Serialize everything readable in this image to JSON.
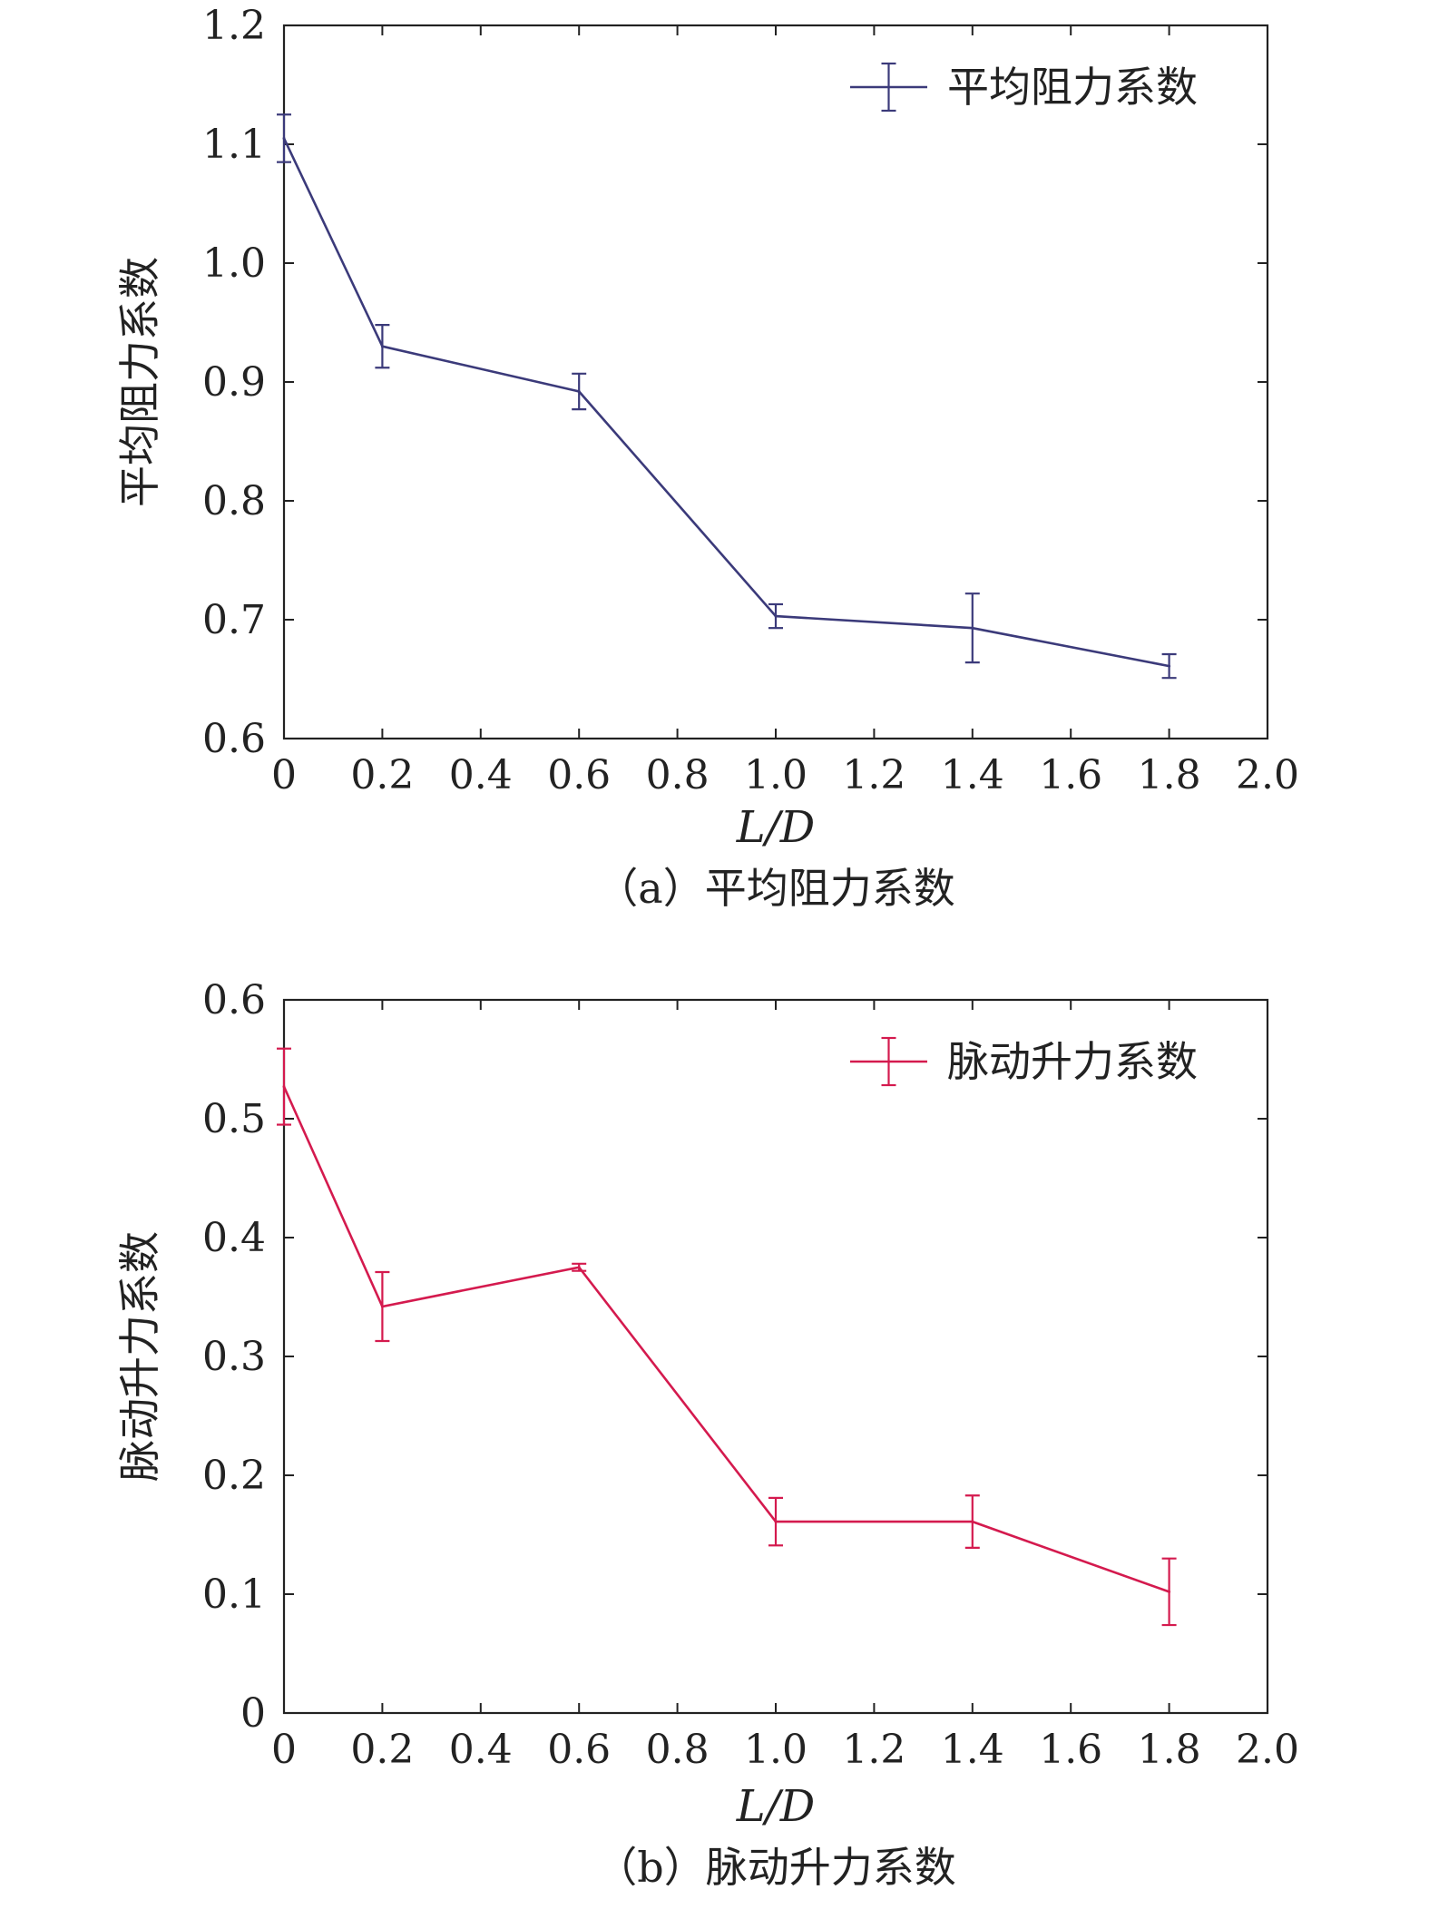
{
  "chart_data": [
    {
      "type": "line",
      "xlabel": "L/D",
      "ylabel": "平均阻力系数",
      "caption": "（a）平均阻力系数",
      "xlim": [
        0,
        2.0
      ],
      "ylim": [
        0.6,
        1.2
      ],
      "x_ticks": [
        "0",
        "0.2",
        "0.4",
        "0.6",
        "0.8",
        "1.0",
        "1.2",
        "1.4",
        "1.6",
        "1.8",
        "2.0"
      ],
      "y_ticks": [
        "0.6",
        "0.7",
        "0.8",
        "0.9",
        "1.0",
        "1.1",
        "1.2"
      ],
      "legend_position": "top-right",
      "series": [
        {
          "name": "平均阻力系数",
          "color": "#3b3a7a",
          "x": [
            0,
            0.2,
            0.6,
            1.0,
            1.4,
            1.8
          ],
          "y": [
            1.105,
            0.93,
            0.892,
            0.703,
            0.693,
            0.661
          ],
          "error": [
            0.02,
            0.018,
            0.015,
            0.01,
            0.029,
            0.01
          ]
        }
      ]
    },
    {
      "type": "line",
      "xlabel": "L/D",
      "ylabel": "脉动升力系数",
      "caption": "（b）脉动升力系数",
      "xlim": [
        0,
        2.0
      ],
      "ylim": [
        0,
        0.6
      ],
      "x_ticks": [
        "0",
        "0.2",
        "0.4",
        "0.6",
        "0.8",
        "1.0",
        "1.2",
        "1.4",
        "1.6",
        "1.8",
        "2.0"
      ],
      "y_ticks": [
        "0",
        "0.1",
        "0.2",
        "0.3",
        "0.4",
        "0.5",
        "0.6"
      ],
      "legend_position": "top-right",
      "series": [
        {
          "name": "脉动升力系数",
          "color": "#d41a4e",
          "x": [
            0,
            0.2,
            0.6,
            1.0,
            1.4,
            1.8
          ],
          "y": [
            0.527,
            0.342,
            0.375,
            0.161,
            0.161,
            0.102
          ],
          "error": [
            0.032,
            0.029,
            0.003,
            0.02,
            0.022,
            0.028
          ]
        }
      ]
    }
  ]
}
